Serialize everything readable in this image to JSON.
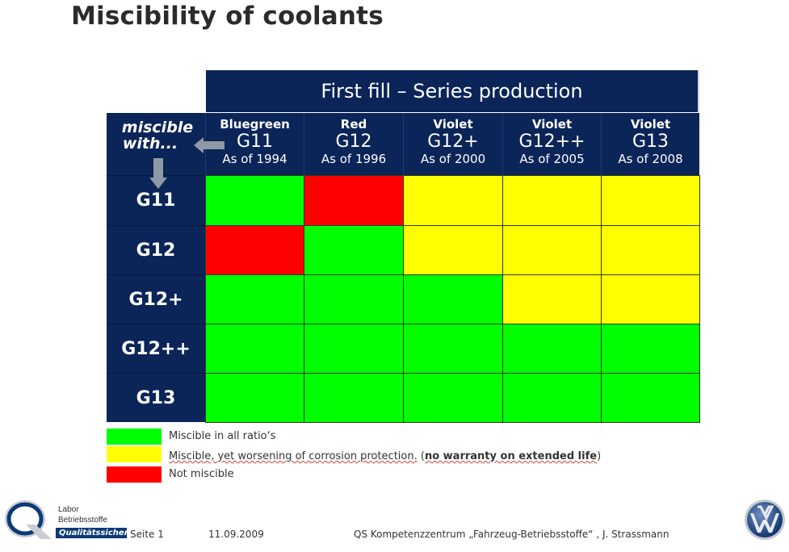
{
  "title": "Miscibility of coolants",
  "table": {
    "super_header": "First fill – Series production",
    "corner_label_line1": "miscible",
    "corner_label_line2": "with...",
    "columns": [
      {
        "color_name": "Bluegreen",
        "code": "G11",
        "since": "As of 1994"
      },
      {
        "color_name": "Red",
        "code": "G12",
        "since": "As of 1996"
      },
      {
        "color_name": "Violet",
        "code": "G12+",
        "since": "As of 2000"
      },
      {
        "color_name": "Violet",
        "code": "G12++",
        "since": "As of 2005"
      },
      {
        "color_name": "Violet",
        "code": "G13",
        "since": "As of 2008"
      }
    ],
    "rows": [
      {
        "label": "G11",
        "cells": [
          "green",
          "red",
          "yellow",
          "yellow",
          "yellow"
        ]
      },
      {
        "label": "G12",
        "cells": [
          "red",
          "green",
          "yellow",
          "yellow",
          "yellow"
        ]
      },
      {
        "label": "G12+",
        "cells": [
          "green",
          "green",
          "green",
          "yellow",
          "yellow"
        ]
      },
      {
        "label": "G12++",
        "cells": [
          "green",
          "green",
          "green",
          "green",
          "green"
        ]
      },
      {
        "label": "G13",
        "cells": [
          "green",
          "green",
          "green",
          "green",
          "green"
        ]
      }
    ]
  },
  "colors": {
    "green": "#00ff00",
    "yellow": "#ffff00",
    "red": "#ff0000",
    "navy": "#0b2559",
    "arrow": "#8e99a6"
  },
  "legend": [
    {
      "key": "green",
      "text": "Miscible in all ratio‘s"
    },
    {
      "key": "yellow",
      "text_main": "Miscible, yet worsening of corrosion protection.",
      "text_open": " (",
      "text_bold": "no warranty on extended life",
      "text_close": ")"
    },
    {
      "key": "red",
      "text": "Not miscible"
    }
  ],
  "footer": {
    "logo_line1": "Labor",
    "logo_line2": "Betriebsstoffe",
    "logo_badge": "Qualitätssicherung",
    "page": "Seite 1",
    "date": "11.09.2009",
    "center": "QS Kompetenzzentrum „Fahrzeug-Betriebsstoffe“  , J. Strassmann",
    "q_logo_icon": "q-logo-icon",
    "brand_logo_icon": "vw-logo-icon"
  }
}
